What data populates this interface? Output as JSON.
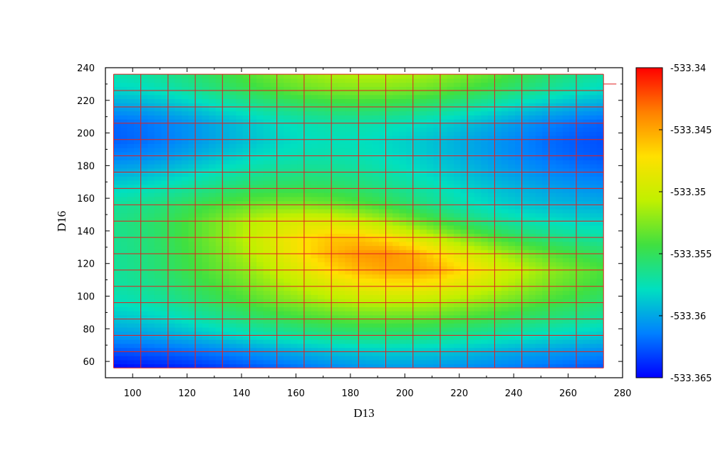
{
  "chart_data": {
    "type": "heatmap",
    "title": "",
    "xlabel": "D13",
    "ylabel": "D16",
    "xlim": [
      90,
      280
    ],
    "ylim": [
      50,
      240
    ],
    "x_ticks": [
      100,
      120,
      140,
      160,
      180,
      200,
      220,
      240,
      260,
      280
    ],
    "y_ticks": [
      60,
      80,
      100,
      120,
      140,
      160,
      180,
      200,
      220,
      240
    ],
    "colorbar": {
      "min": -533.365,
      "max": -533.34,
      "ticks": [
        "-533.34",
        "-533.345",
        "-533.35",
        "-533.355",
        "-533.36",
        "-533.365"
      ],
      "colormap": [
        "#0000ff",
        "#0080ff",
        "#00e0c0",
        "#40e040",
        "#c0f000",
        "#ffe000",
        "#ff8000",
        "#ff0000"
      ]
    },
    "grid": true,
    "grid_color": "#e02020",
    "x": [
      93,
      103,
      113,
      123,
      133,
      143,
      153,
      163,
      173,
      183,
      193,
      203,
      213,
      223,
      233,
      243,
      253,
      263,
      273
    ],
    "y": [
      56,
      66,
      76,
      86,
      96,
      106,
      116,
      126,
      136,
      146,
      156,
      166,
      176,
      186,
      196,
      206,
      216,
      226,
      236
    ],
    "z": [
      [
        -533.365,
        -533.3645,
        -533.3642,
        -533.3638,
        -533.3633,
        -533.3628,
        -533.3623,
        -533.3618,
        -533.3612,
        -533.3608,
        -533.3605,
        -533.3605,
        -533.3607,
        -533.361,
        -533.3613,
        -533.3617,
        -533.362,
        -533.3624,
        -533.3627
      ],
      [
        -533.3627,
        -533.3625,
        -533.3622,
        -533.3618,
        -533.3613,
        -533.3607,
        -533.3601,
        -533.3596,
        -533.3591,
        -533.3588,
        -533.3586,
        -533.3587,
        -533.3589,
        -533.3592,
        -533.3596,
        -533.36,
        -533.3603,
        -533.3607,
        -533.361
      ],
      [
        -533.3605,
        -533.3603,
        -533.3598,
        -533.3592,
        -533.3585,
        -533.3578,
        -533.3572,
        -533.3567,
        -533.3563,
        -533.356,
        -533.3559,
        -533.356,
        -533.3563,
        -533.3567,
        -533.3571,
        -533.3575,
        -533.358,
        -533.3584,
        -533.3588
      ],
      [
        -533.359,
        -533.3587,
        -533.3582,
        -533.3574,
        -533.3566,
        -533.3558,
        -533.3551,
        -533.3544,
        -533.3539,
        -533.3536,
        -533.3535,
        -533.3536,
        -533.3539,
        -533.3544,
        -533.3549,
        -533.3555,
        -533.356,
        -533.3565,
        -533.357
      ],
      [
        -533.3578,
        -533.3574,
        -533.3568,
        -533.3559,
        -533.355,
        -533.3541,
        -533.3531,
        -533.3523,
        -533.3515,
        -533.351,
        -533.3508,
        -533.3509,
        -533.3513,
        -533.3519,
        -533.3527,
        -533.3535,
        -533.3543,
        -533.355,
        -533.3557
      ],
      [
        -533.3571,
        -533.3567,
        -533.356,
        -533.355,
        -533.354,
        -533.3529,
        -533.3517,
        -533.3505,
        -533.3493,
        -533.3484,
        -533.348,
        -533.3479,
        -533.3484,
        -533.3494,
        -533.3506,
        -533.3518,
        -533.3529,
        -533.3538,
        -533.3546
      ],
      [
        -533.3568,
        -533.3563,
        -533.3554,
        -533.3543,
        -533.3532,
        -533.352,
        -533.3504,
        -533.3487,
        -533.347,
        -533.3457,
        -533.3449,
        -533.3447,
        -533.3455,
        -533.3472,
        -533.349,
        -533.3507,
        -533.352,
        -533.3531,
        -533.354
      ],
      [
        -533.3567,
        -533.3561,
        -533.3552,
        -533.354,
        -533.3527,
        -533.3511,
        -533.3492,
        -533.3472,
        -533.3455,
        -533.3445,
        -533.3442,
        -533.3452,
        -533.3472,
        -533.3492,
        -533.351,
        -533.3525,
        -533.3536,
        -533.3545,
        -533.3552
      ],
      [
        -533.3565,
        -533.356,
        -533.355,
        -533.3537,
        -533.3522,
        -533.3505,
        -533.3487,
        -533.3472,
        -533.3462,
        -533.3462,
        -533.3472,
        -533.349,
        -533.3509,
        -533.3527,
        -533.3541,
        -533.3552,
        -533.356,
        -533.3566,
        -533.357
      ],
      [
        -533.3563,
        -533.3558,
        -533.355,
        -533.3538,
        -533.3524,
        -533.351,
        -533.3499,
        -533.3493,
        -533.3494,
        -533.3502,
        -533.3515,
        -533.353,
        -533.3544,
        -533.3556,
        -533.3566,
        -533.3573,
        -533.3578,
        -533.3582,
        -533.3584
      ],
      [
        -533.3568,
        -533.3564,
        -533.3557,
        -533.3548,
        -533.354,
        -533.3532,
        -533.3527,
        -533.3526,
        -533.353,
        -533.3537,
        -533.3546,
        -533.3556,
        -533.3566,
        -533.3575,
        -533.3582,
        -533.3588,
        -533.3592,
        -533.3595,
        -533.3597
      ],
      [
        -533.3582,
        -533.3578,
        -533.3572,
        -533.3565,
        -533.3558,
        -533.3552,
        -533.3549,
        -533.3548,
        -533.355,
        -533.3555,
        -533.3561,
        -533.3568,
        -533.3575,
        -533.3583,
        -533.359,
        -533.3596,
        -533.3601,
        -533.3605,
        -533.3608
      ],
      [
        -533.3598,
        -533.3595,
        -533.3589,
        -533.3582,
        -533.3575,
        -533.3569,
        -533.3565,
        -533.3563,
        -533.3564,
        -533.3567,
        -533.3572,
        -533.3578,
        -533.3585,
        -533.3592,
        -533.3599,
        -533.3605,
        -533.3611,
        -533.3615,
        -533.3618
      ],
      [
        -533.3614,
        -533.3611,
        -533.3605,
        -533.3597,
        -533.3589,
        -533.3582,
        -533.3577,
        -533.3574,
        -533.3573,
        -533.3575,
        -533.3579,
        -533.3584,
        -533.3591,
        -533.3598,
        -533.3605,
        -533.3612,
        -533.3618,
        -533.3623,
        -533.3626
      ],
      [
        -533.3624,
        -533.362,
        -533.3614,
        -533.3606,
        -533.3598,
        -533.359,
        -533.3583,
        -533.3579,
        -533.3577,
        -533.3578,
        -533.3581,
        -533.3586,
        -533.3592,
        -533.3599,
        -533.3606,
        -533.3613,
        -533.362,
        -533.3625,
        -533.3628
      ],
      [
        -533.3622,
        -533.3618,
        -533.3612,
        -533.3605,
        -533.3596,
        -533.3588,
        -533.358,
        -533.3575,
        -533.3572,
        -533.3572,
        -533.3574,
        -533.3578,
        -533.3584,
        -533.3591,
        -533.3598,
        -533.3606,
        -533.3613,
        -533.3619,
        -533.3623
      ],
      [
        -533.3603,
        -533.36,
        -533.3594,
        -533.3587,
        -533.3578,
        -533.357,
        -533.3562,
        -533.3556,
        -533.3552,
        -533.3551,
        -533.3552,
        -533.3556,
        -533.3562,
        -533.3569,
        -533.3577,
        -533.3585,
        -533.3592,
        -533.3598,
        -533.3603
      ],
      [
        -533.3584,
        -533.3581,
        -533.3575,
        -533.3567,
        -533.3558,
        -533.3549,
        -533.354,
        -533.3533,
        -533.3528,
        -533.3526,
        -533.3526,
        -533.353,
        -533.3536,
        -533.3544,
        -533.3552,
        -533.3561,
        -533.3569,
        -533.3576,
        -533.3582
      ],
      [
        -533.3573,
        -533.357,
        -533.3564,
        -533.3556,
        -533.3547,
        -533.3537,
        -533.3527,
        -533.3519,
        -533.3513,
        -533.351,
        -533.351,
        -533.3513,
        -533.3519,
        -533.3527,
        -533.3536,
        -533.3546,
        -533.3555,
        -533.3563,
        -533.357
      ]
    ]
  }
}
